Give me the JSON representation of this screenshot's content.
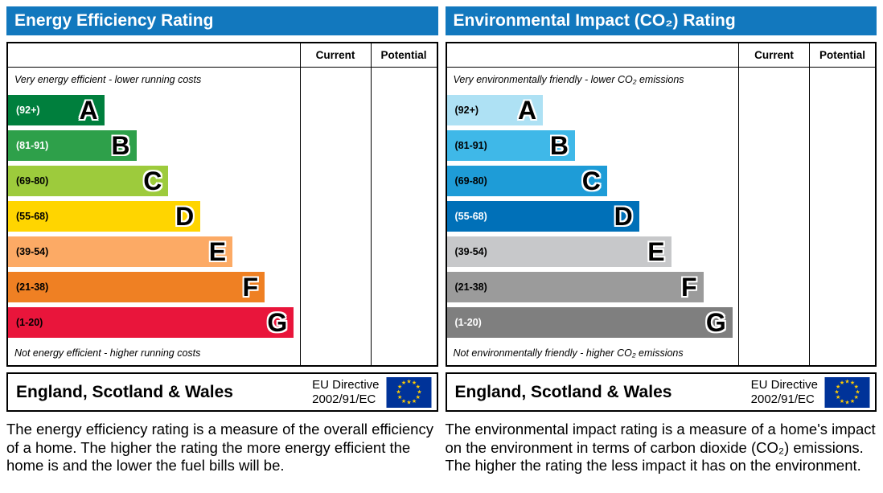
{
  "colors": {
    "header": "#1278be",
    "flag_blue": "#003399",
    "flag_stars": "#ffcc00"
  },
  "panels": [
    {
      "title": "Energy Efficiency Rating",
      "columns": [
        "Current",
        "Potential"
      ],
      "top_note": "Very energy efficient - lower running costs",
      "bottom_note": "Not energy efficient - higher running costs",
      "bands": [
        {
          "label": "(92+)",
          "letter": "A",
          "color": "#007f3d",
          "label_color": "#ffffff",
          "width_pct": 33
        },
        {
          "label": "(81-91)",
          "letter": "B",
          "color": "#2ea04a",
          "label_color": "#ffffff",
          "width_pct": 44
        },
        {
          "label": "(69-80)",
          "letter": "C",
          "color": "#9dcb3c",
          "label_color": "#000000",
          "width_pct": 55
        },
        {
          "label": "(55-68)",
          "letter": "D",
          "color": "#ffd500",
          "label_color": "#000000",
          "width_pct": 66
        },
        {
          "label": "(39-54)",
          "letter": "E",
          "color": "#fcaa65",
          "label_color": "#000000",
          "width_pct": 77
        },
        {
          "label": "(21-38)",
          "letter": "F",
          "color": "#ef8023",
          "label_color": "#000000",
          "width_pct": 88
        },
        {
          "label": "(1-20)",
          "letter": "G",
          "color": "#e9153b",
          "label_color": "#000000",
          "width_pct": 98
        }
      ],
      "footer": {
        "region": "England, Scotland & Wales",
        "directive_line1": "EU Directive",
        "directive_line2": "2002/91/EC"
      },
      "description": "The energy efficiency rating is a measure of the overall efficiency of a home. The higher the rating the more energy efficient the home is and the lower the fuel bills will be."
    },
    {
      "title": "Environmental Impact (CO₂) Rating",
      "columns": [
        "Current",
        "Potential"
      ],
      "top_note": "Very environmentally friendly - lower CO₂ emissions",
      "bottom_note": "Not environmentally friendly - higher CO₂ emissions",
      "bands": [
        {
          "label": "(92+)",
          "letter": "A",
          "color": "#aee1f4",
          "label_color": "#000000",
          "width_pct": 33
        },
        {
          "label": "(81-91)",
          "letter": "B",
          "color": "#3fb8e8",
          "label_color": "#000000",
          "width_pct": 44
        },
        {
          "label": "(69-80)",
          "letter": "C",
          "color": "#1e9cd7",
          "label_color": "#000000",
          "width_pct": 55
        },
        {
          "label": "(55-68)",
          "letter": "D",
          "color": "#0070b8",
          "label_color": "#ffffff",
          "width_pct": 66
        },
        {
          "label": "(39-54)",
          "letter": "E",
          "color": "#c7c8ca",
          "label_color": "#000000",
          "width_pct": 77
        },
        {
          "label": "(21-38)",
          "letter": "F",
          "color": "#9b9b9b",
          "label_color": "#000000",
          "width_pct": 88
        },
        {
          "label": "(1-20)",
          "letter": "G",
          "color": "#7f7f7f",
          "label_color": "#ffffff",
          "width_pct": 98
        }
      ],
      "footer": {
        "region": "England, Scotland & Wales",
        "directive_line1": "EU Directive",
        "directive_line2": "2002/91/EC"
      },
      "description": "The environmental impact rating is a measure of a home's impact on the environment in terms of carbon dioxide (CO₂) emissions. The higher the rating the less impact it has on the environment."
    }
  ],
  "chart_data": [
    {
      "type": "bar",
      "title": "Energy Efficiency Rating",
      "categories": [
        "A (92+)",
        "B (81-91)",
        "C (69-80)",
        "D (55-68)",
        "E (39-54)",
        "F (21-38)",
        "G (1-20)"
      ],
      "values": [
        33,
        44,
        55,
        66,
        77,
        88,
        98
      ],
      "values_note": "relative band bar widths in percent (standard EPC scale graphic)",
      "columns": [
        "Current",
        "Potential"
      ],
      "current": null,
      "potential": null,
      "colors": [
        "#007f3d",
        "#2ea04a",
        "#9dcb3c",
        "#ffd500",
        "#fcaa65",
        "#ef8023",
        "#e9153b"
      ]
    },
    {
      "type": "bar",
      "title": "Environmental Impact (CO₂) Rating",
      "categories": [
        "A (92+)",
        "B (81-91)",
        "C (69-80)",
        "D (55-68)",
        "E (39-54)",
        "F (21-38)",
        "G (1-20)"
      ],
      "values": [
        33,
        44,
        55,
        66,
        77,
        88,
        98
      ],
      "values_note": "relative band bar widths in percent (standard EPC scale graphic)",
      "columns": [
        "Current",
        "Potential"
      ],
      "current": null,
      "potential": null,
      "colors": [
        "#aee1f4",
        "#3fb8e8",
        "#1e9cd7",
        "#0070b8",
        "#c7c8ca",
        "#9b9b9b",
        "#7f7f7f"
      ]
    }
  ]
}
